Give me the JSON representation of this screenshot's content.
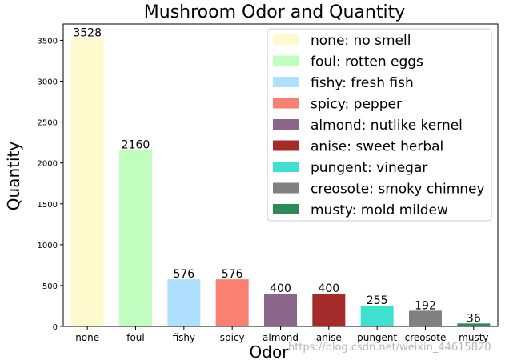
{
  "chart_data": {
    "type": "bar",
    "title": "Mushroom Odor and Quantity",
    "xlabel": "Odor",
    "ylabel": "Quantity",
    "ylim": [
      0,
      3700
    ],
    "yticks": [
      0,
      500,
      1000,
      1500,
      2000,
      2500,
      3000,
      3500
    ],
    "categories": [
      "none",
      "foul",
      "fishy",
      "spicy",
      "almond",
      "anise",
      "pungent",
      "creosote",
      "musty"
    ],
    "values": [
      3528,
      2160,
      576,
      576,
      400,
      400,
      255,
      192,
      36
    ],
    "colors": [
      "#fffacd",
      "#c0ffc0",
      "#b0e0ff",
      "#fa8072",
      "#8b668b",
      "#a52a2a",
      "#40e0d0",
      "#808080",
      "#2e8b57"
    ],
    "legend": {
      "placement": "top-right",
      "entries": [
        "none: no smell",
        "foul: rotten eggs",
        "fishy: fresh fish",
        "spicy: pepper",
        "almond: nutlike kernel",
        "anise: sweet herbal",
        "pungent: vinegar",
        "creosote: smoky chimney",
        "musty: mold mildew"
      ]
    },
    "grid": false
  },
  "watermark": "https://blog.csdn.net/weixin_44615820"
}
